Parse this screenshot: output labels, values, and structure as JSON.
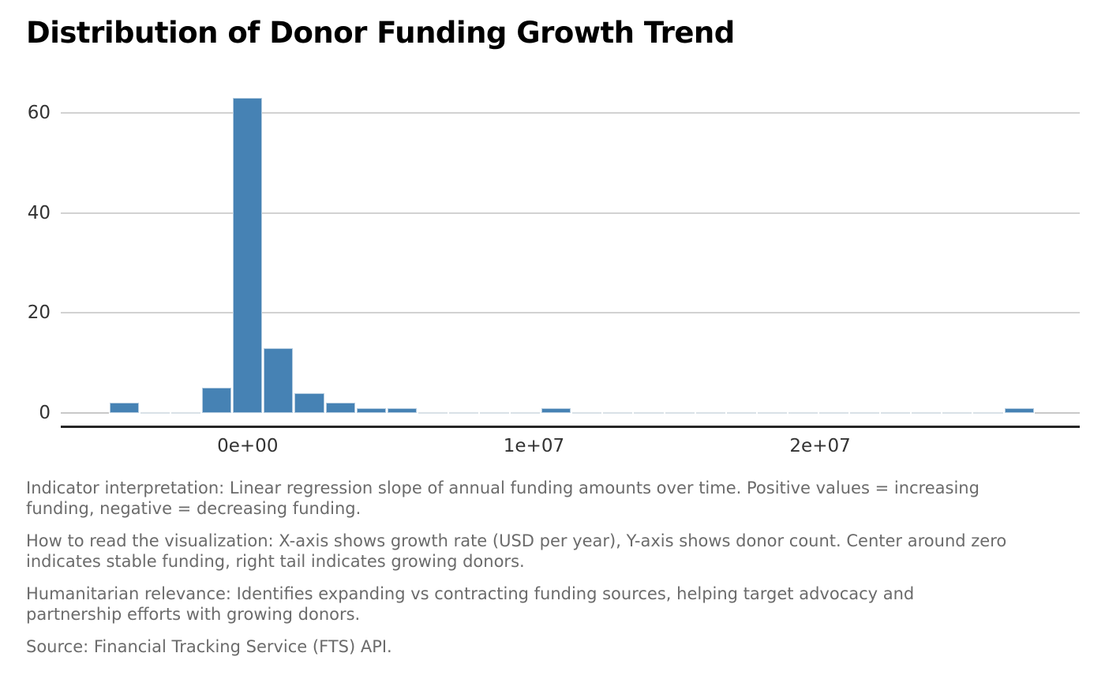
{
  "title": "Distribution of Donor Funding Growth Trend",
  "chart_data": {
    "type": "bar",
    "subtype": "histogram",
    "title": "Distribution of Donor Funding Growth Trend",
    "xlabel": "growth rate (USD per year)",
    "ylabel": "donor count",
    "grid": "horizontal",
    "legend": "none",
    "bar_fill": "#4682B4",
    "bar_border": "#b3cbdf",
    "gridline_color": "#d2d2d2",
    "axis_line_color": "#262626",
    "bin_width": 1078000,
    "total_donors": 93,
    "bin_centers": [
      -4312000,
      -3234000,
      -2156000,
      -1078000,
      0,
      1078000,
      2156000,
      3234000,
      4312000,
      5390000,
      6468000,
      7546000,
      8624000,
      9702000,
      10780000,
      11858000,
      12936000,
      14014000,
      15092000,
      16170000,
      17248000,
      18326000,
      19404000,
      20482000,
      21560000,
      22638000,
      23716000,
      24794000,
      25872000,
      26950000
    ],
    "counts": [
      2,
      0,
      0,
      5,
      63,
      13,
      4,
      2,
      1,
      1,
      0,
      0,
      0,
      0,
      1,
      0,
      0,
      0,
      0,
      0,
      0,
      0,
      0,
      0,
      0,
      0,
      0,
      0,
      0,
      1
    ],
    "xlim": [
      -6530000,
      29070000
    ],
    "ylim": [
      0,
      66
    ],
    "x_ticks": [
      {
        "value": 0,
        "label": "0e+00"
      },
      {
        "value": 10000000,
        "label": "1e+07"
      },
      {
        "value": 20000000,
        "label": "2e+07"
      }
    ],
    "y_ticks": [
      {
        "value": 0,
        "label": "0"
      },
      {
        "value": 20,
        "label": "20"
      },
      {
        "value": 40,
        "label": "40"
      },
      {
        "value": 60,
        "label": "60"
      }
    ]
  },
  "notes": {
    "p1": {
      "line1": "Indicator interpretation: Linear regression slope of annual funding amounts over time. Positive values = increasing",
      "line2": "funding, negative = decreasing funding."
    },
    "p2": {
      "line1": "How to read the visualization: X-axis shows growth rate (USD per year), Y-axis shows donor count. Center around zero",
      "line2": "indicates stable funding, right tail indicates growing donors."
    },
    "p3": {
      "line1": "Humanitarian relevance: Identifies expanding vs contracting funding sources, helping target advocacy and",
      "line2": "partnership efforts with growing donors."
    },
    "p4": {
      "line1": "Source: Financial Tracking Service (FTS) API."
    }
  }
}
